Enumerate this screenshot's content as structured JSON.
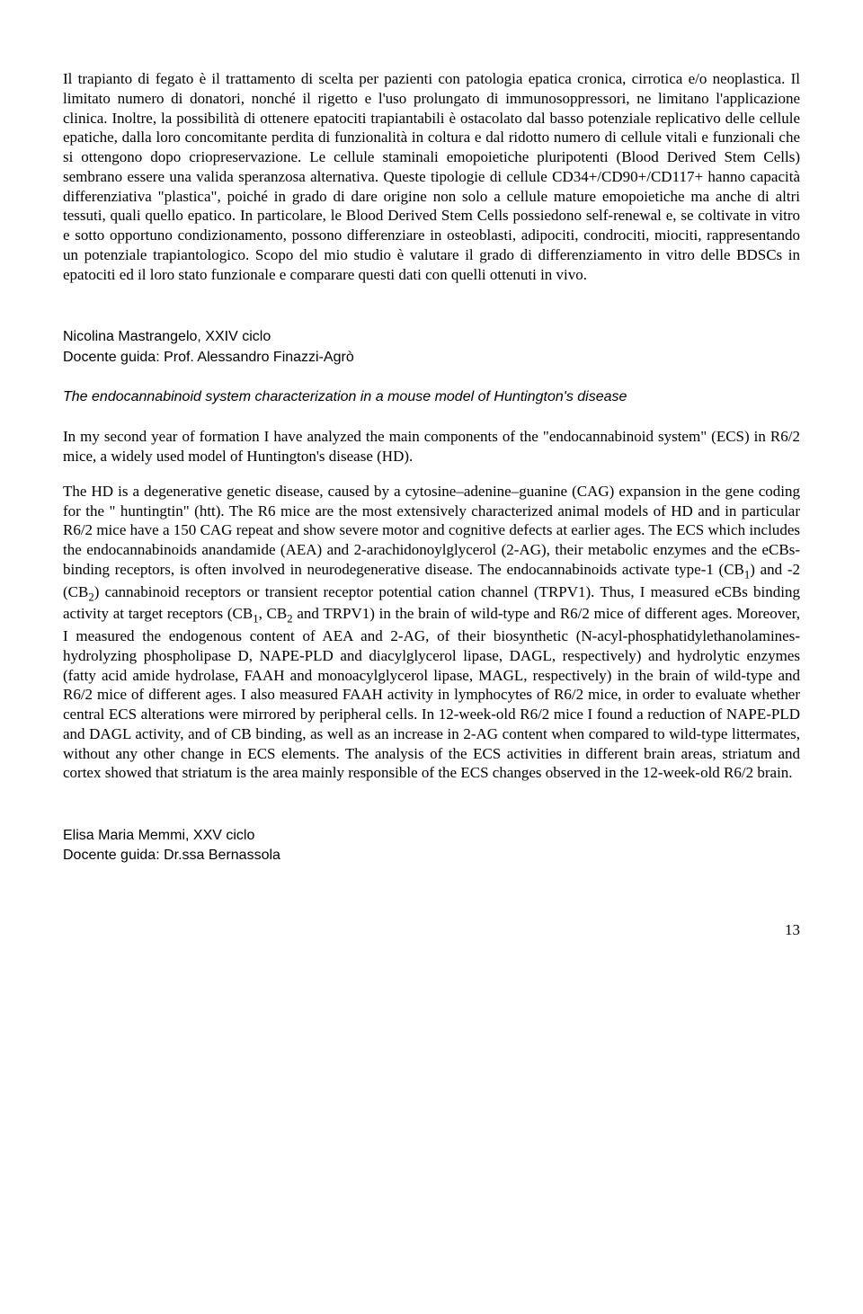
{
  "section1": {
    "body": "Il trapianto di fegato è il trattamento di scelta per pazienti con patologia epatica cronica, cirrotica e/o neoplastica. Il limitato numero di donatori, nonché il rigetto e l'uso prolungato di immunosoppressori, ne limitano l'applicazione clinica. Inoltre, la possibilità di ottenere epatociti trapiantabili è ostacolato dal basso potenziale replicativo delle cellule epatiche, dalla loro concomitante perdita di funzionalità in coltura e dal ridotto numero di cellule vitali e funzionali che si ottengono dopo criopreservazione. Le cellule staminali emopoietiche pluripotenti (Blood Derived Stem Cells) sembrano essere una valida speranzosa alternativa. Queste tipologie di cellule CD34+/CD90+/CD117+ hanno capacità differenziativa \"plastica\", poiché in grado di dare origine non solo a cellule mature emopoietiche ma anche di altri tessuti, quali quello epatico. In particolare, le Blood Derived Stem Cells possiedono self-renewal e, se coltivate in vitro e sotto opportuno condizionamento, possono differenziare in osteoblasti, adipociti, condrociti, miociti, rappresentando un potenziale trapiantologico. Scopo del mio studio è valutare il grado di differenziamento in vitro delle BDSCs in epatociti ed il loro stato funzionale e comparare questi dati con quelli ottenuti in vivo."
  },
  "section2": {
    "author": "Nicolina Mastrangelo, XXIV ciclo",
    "supervisor": "Docente guida: Prof. Alessandro Finazzi-Agrò",
    "title": "The endocannabinoid system characterization in a mouse model of Huntington's disease",
    "para1": "In my second year of formation I have analyzed the main components of the \"endocannabinoid system\" (ECS) in R6/2 mice, a widely used model of Huntington's disease (HD).",
    "para2_a": "The HD is a degenerative genetic disease, caused by a cytosine–adenine–guanine (CAG) expansion in the gene coding for the \" huntingtin\" (htt). The R6 mice are the most extensively characterized animal models of HD and in particular R6/2 mice have a 150 CAG repeat and show severe motor and cognitive defects at earlier ages. The ECS which includes the endocannabinoids anandamide (AEA) and 2-arachidonoylglycerol (2-AG), their metabolic enzymes and the eCBs-binding receptors, is often involved in neurodegenerative disease. The endocannabinoids activate type-1 (CB",
    "para2_b": ") and -2 (CB",
    "para2_c": ") cannabinoid receptors or transient receptor potential cation channel (TRPV1). Thus, I measured eCBs binding activity at target receptors (CB",
    "para2_d": ", CB",
    "para2_e": " and TRPV1) in the brain of wild-type and R6/2 mice of different ages. Moreover, I measured the endogenous content of AEA and 2-AG, of their biosynthetic (N-acyl-phosphatidylethanolamines-hydrolyzing phospholipase D, NAPE-PLD and diacylglycerol lipase, DAGL, respectively) and hydrolytic enzymes (fatty acid amide hydrolase, FAAH and monoacylglycerol lipase, MAGL, respectively) in the brain of wild-type and R6/2 mice of different ages. I also measured FAAH activity in lymphocytes of R6/2 mice, in order to evaluate whether central ECS alterations were mirrored by peripheral cells. In 12-week-old R6/2 mice I found a reduction of NAPE-PLD and DAGL activity, and of CB binding, as well as an increase in 2-AG content when compared to wild-type littermates, without any other change in ECS elements. The analysis of the ECS activities in different brain areas, striatum and cortex showed that striatum is the area mainly responsible of the ECS changes observed in the 12-week-old R6/2 brain.",
    "sub1": "1",
    "sub2": "2"
  },
  "section3": {
    "author": "Elisa Maria Memmi, XXV ciclo",
    "supervisor": "Docente guida: Dr.ssa Bernassola"
  },
  "page_number": "13"
}
